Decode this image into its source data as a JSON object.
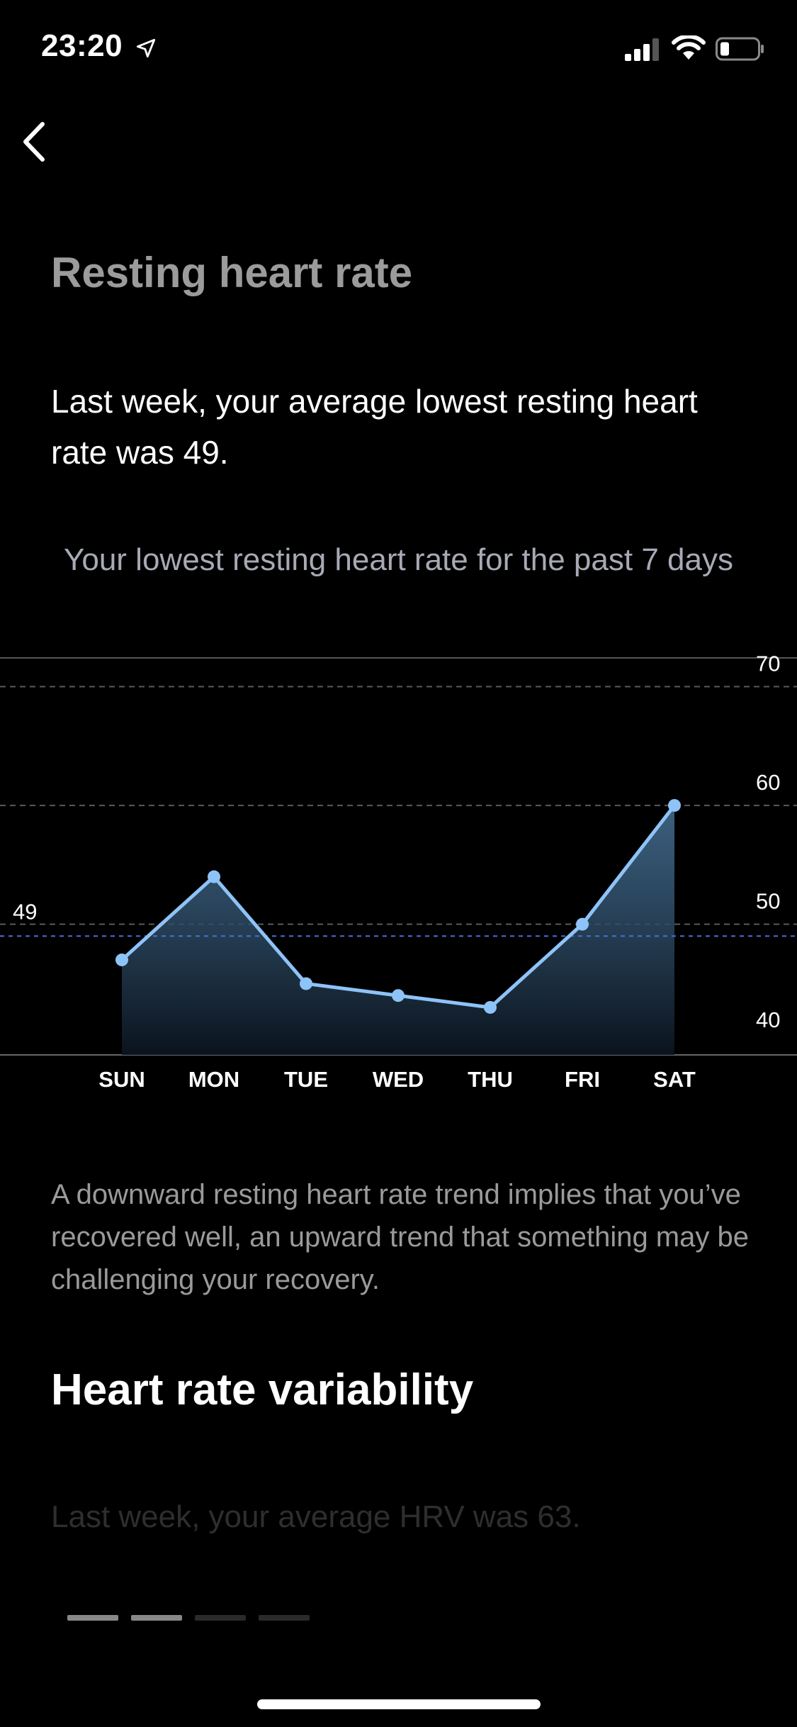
{
  "status_bar": {
    "time": "23:20"
  },
  "header": {
    "back_icon": "chevron-left-icon"
  },
  "title": "Resting heart rate",
  "summary": "Last week, your average lowest resting heart rate was 49.",
  "chart_title": "Your lowest resting heart rate for the past 7 days",
  "chart_data": {
    "type": "area",
    "categories": [
      "SUN",
      "MON",
      "TUE",
      "WED",
      "THU",
      "FRI",
      "SAT"
    ],
    "series": [
      {
        "values": [
          47,
          54,
          45,
          44,
          43,
          50,
          60
        ]
      }
    ],
    "average": 49,
    "average_label": "49",
    "y_ticks": [
      40,
      50,
      60,
      70
    ],
    "ylim": [
      39,
      72
    ],
    "colors": {
      "line": "#8ec3f7",
      "average": "#4a6fd6",
      "grid": "#5a5a5a"
    }
  },
  "description": "A downward resting heart rate trend implies that you’ve recovered well, an upward trend that something may be challenging your recovery.",
  "section_title": "Heart rate variability",
  "next_summary": "Last week, your average HRV was 63.",
  "pager": {
    "count": 4,
    "active": [
      0,
      1
    ]
  }
}
